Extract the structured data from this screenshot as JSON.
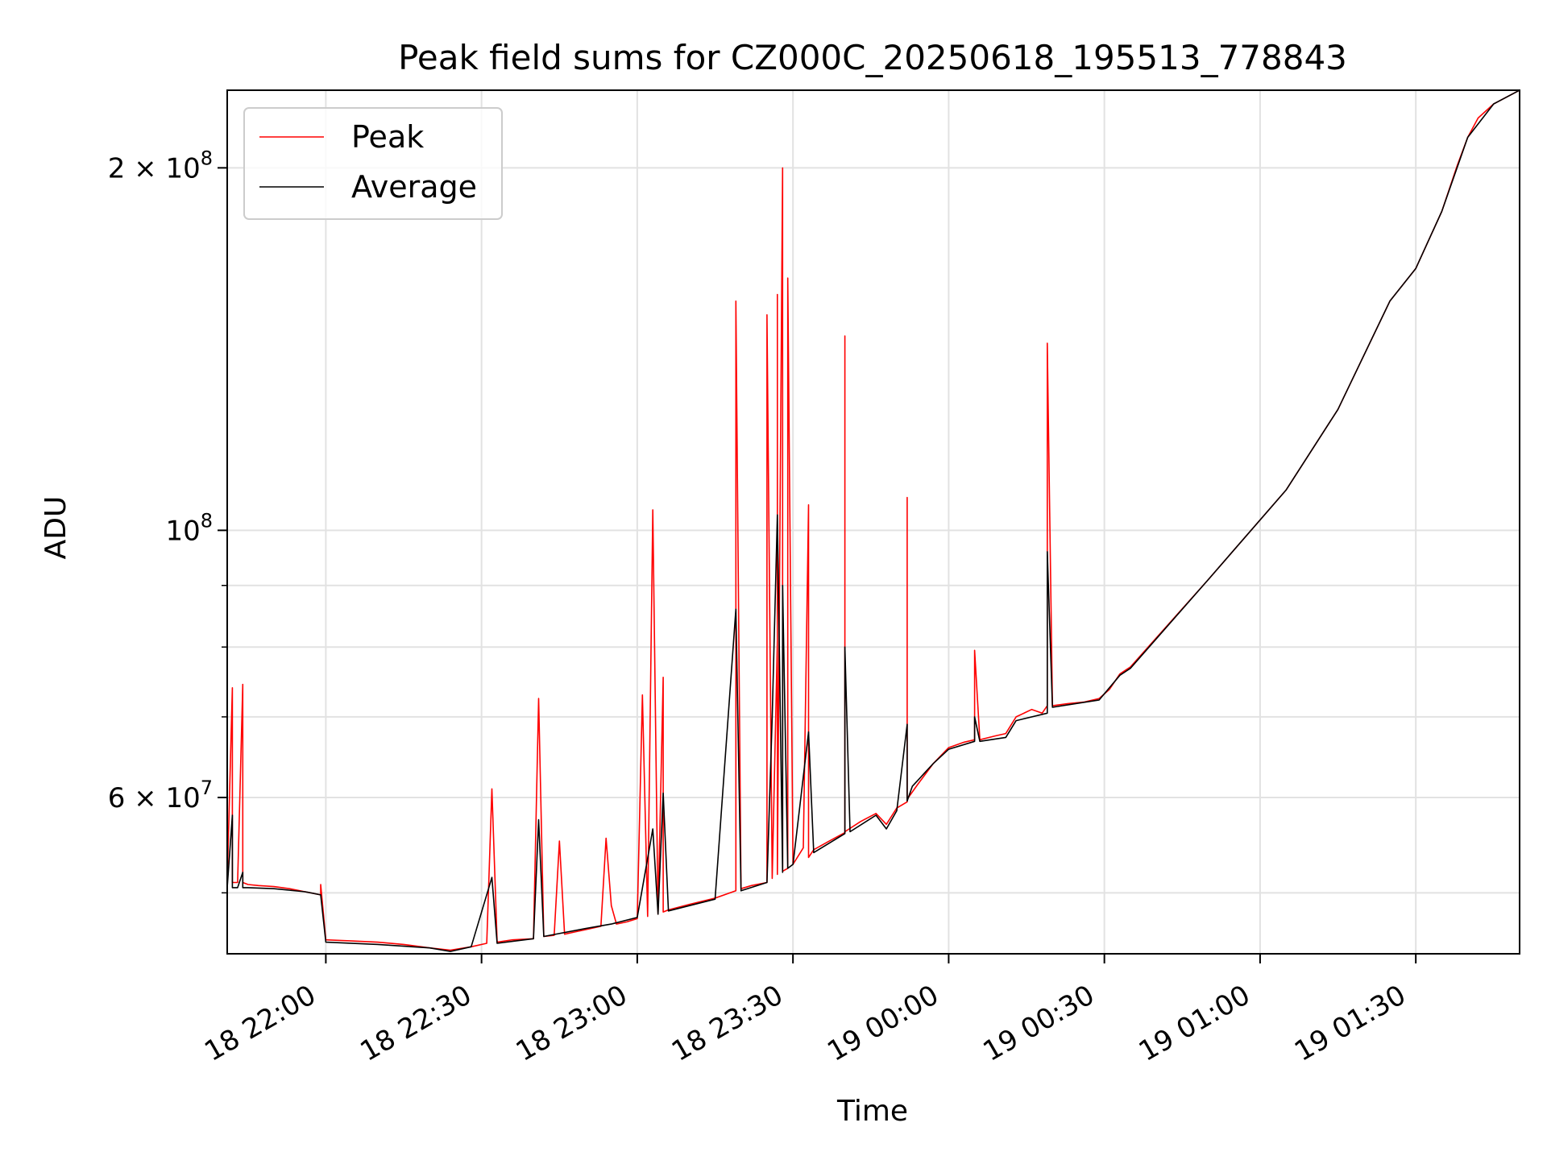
{
  "chart_data": {
    "type": "line",
    "title": "Peak field sums for CZ000C_20250618_195513_778843",
    "xlabel": "Time",
    "ylabel": "ADU",
    "y_scale": "log",
    "ylim": [
      44500000,
      232000000
    ],
    "xlim": [
      "2025-06-18 21:41",
      "2025-06-19 01:50"
    ],
    "grid": true,
    "legend_position": "top-left",
    "x_tick_labels": [
      "18 22:00",
      "18 22:30",
      "18 23:00",
      "18 23:30",
      "19 00:00",
      "19 00:30",
      "19 01:00",
      "19 01:30"
    ],
    "x_tick_times": [
      "2025-06-18 22:00",
      "2025-06-18 22:30",
      "2025-06-18 23:00",
      "2025-06-18 23:30",
      "2025-06-19 00:00",
      "2025-06-19 00:30",
      "2025-06-19 01:00",
      "2025-06-19 01:30"
    ],
    "y_major_ticks": [
      {
        "value": 60000000,
        "base": "6 × 10",
        "exp": "7"
      },
      {
        "value": 100000000,
        "base": "10",
        "exp": "8"
      },
      {
        "value": 200000000,
        "base": "2 × 10",
        "exp": "8"
      }
    ],
    "y_minor_ticks": [
      50000000,
      70000000,
      80000000,
      90000000
    ],
    "colors": {
      "Peak": "#ff0000",
      "Average": "#000000"
    },
    "series": [
      {
        "name": "Peak",
        "color": "#ff0000",
        "x": [
          "2025-06-18 21:41",
          "2025-06-18 21:42",
          "2025-06-18 21:42",
          "2025-06-18 21:43",
          "2025-06-18 21:44",
          "2025-06-18 21:44",
          "2025-06-18 21:45",
          "2025-06-18 21:47",
          "2025-06-18 21:50",
          "2025-06-18 21:53",
          "2025-06-18 21:56",
          "2025-06-18 21:59",
          "2025-06-18 21:59",
          "2025-06-18 22:00",
          "2025-06-18 22:05",
          "2025-06-18 22:10",
          "2025-06-18 22:15",
          "2025-06-18 22:20",
          "2025-06-18 22:24",
          "2025-06-18 22:28",
          "2025-06-18 22:31",
          "2025-06-18 22:32",
          "2025-06-18 22:33",
          "2025-06-18 22:36",
          "2025-06-18 22:40",
          "2025-06-18 22:41",
          "2025-06-18 22:42",
          "2025-06-18 22:44",
          "2025-06-18 22:45",
          "2025-06-18 22:46",
          "2025-06-18 22:48",
          "2025-06-18 22:50",
          "2025-06-18 22:53",
          "2025-06-18 22:54",
          "2025-06-18 22:55",
          "2025-06-18 22:56",
          "2025-06-18 22:58",
          "2025-06-18 23:00",
          "2025-06-18 23:01",
          "2025-06-18 23:02",
          "2025-06-18 23:03",
          "2025-06-18 23:04",
          "2025-06-18 23:05",
          "2025-06-18 23:05",
          "2025-06-18 23:06",
          "2025-06-18 23:10",
          "2025-06-18 23:15",
          "2025-06-18 23:19",
          "2025-06-18 23:19",
          "2025-06-18 23:20",
          "2025-06-18 23:22",
          "2025-06-18 23:25",
          "2025-06-18 23:25",
          "2025-06-18 23:26",
          "2025-06-18 23:27",
          "2025-06-18 23:27",
          "2025-06-18 23:27",
          "2025-06-18 23:28",
          "2025-06-18 23:28",
          "2025-06-18 23:29",
          "2025-06-18 23:29",
          "2025-06-18 23:30",
          "2025-06-18 23:32",
          "2025-06-18 23:33",
          "2025-06-18 23:33",
          "2025-06-18 23:34",
          "2025-06-18 23:37",
          "2025-06-18 23:40",
          "2025-06-18 23:40",
          "2025-06-18 23:40",
          "2025-06-18 23:43",
          "2025-06-18 23:46",
          "2025-06-18 23:48",
          "2025-06-18 23:50",
          "2025-06-18 23:52",
          "2025-06-18 23:52",
          "2025-06-18 23:52",
          "2025-06-18 23:54",
          "2025-06-18 23:57",
          "2025-06-19 00:00",
          "2025-06-19 00:03",
          "2025-06-19 00:05",
          "2025-06-19 00:05",
          "2025-06-19 00:06",
          "2025-06-19 00:09",
          "2025-06-19 00:11",
          "2025-06-19 00:13",
          "2025-06-19 00:16",
          "2025-06-19 00:18",
          "2025-06-19 00:19",
          "2025-06-19 00:19",
          "2025-06-19 00:20",
          "2025-06-19 00:23",
          "2025-06-19 00:26",
          "2025-06-19 00:29",
          "2025-06-19 00:31",
          "2025-06-19 00:33",
          "2025-06-19 00:35",
          "2025-06-19 00:50",
          "2025-06-19 01:05",
          "2025-06-19 01:15",
          "2025-06-19 01:25",
          "2025-06-19 01:30",
          "2025-06-19 01:35",
          "2025-06-19 01:38",
          "2025-06-19 01:40",
          "2025-06-19 01:42",
          "2025-06-19 01:45",
          "2025-06-19 01:50"
        ],
        "values": [
          51000000,
          74000000,
          51000000,
          51000000,
          74500000,
          51000000,
          50800000,
          50700000,
          50600000,
          50400000,
          50100000,
          49800000,
          50800000,
          45700000,
          45600000,
          45500000,
          45300000,
          45000000,
          44800000,
          45100000,
          45400000,
          61000000,
          45500000,
          45700000,
          45800000,
          72500000,
          46000000,
          46100000,
          55200000,
          46200000,
          46400000,
          46600000,
          46900000,
          55500000,
          48800000,
          47100000,
          47300000,
          47600000,
          73000000,
          47800000,
          104000000,
          48000000,
          75500000,
          48200000,
          48400000,
          48900000,
          49500000,
          50200000,
          155000000,
          50400000,
          50700000,
          51000000,
          151000000,
          51400000,
          81000000,
          157000000,
          51800000,
          200000000,
          52100000,
          52400000,
          162000000,
          52800000,
          54500000,
          105000000,
          53500000,
          54300000,
          55200000,
          56100000,
          145000000,
          56200000,
          57300000,
          58200000,
          57000000,
          58800000,
          59500000,
          106500000,
          59800000,
          61500000,
          64000000,
          66000000,
          66700000,
          67000000,
          79500000,
          67000000,
          67500000,
          67800000,
          70000000,
          71000000,
          70500000,
          71500000,
          143000000,
          71500000,
          71800000,
          72000000,
          72500000,
          73800000,
          76000000,
          77000000,
          91000000,
          108000000,
          126000000,
          155000000,
          165000000,
          184000000,
          201000000,
          212000000,
          220000000,
          226000000,
          232000000
        ]
      },
      {
        "name": "Average",
        "color": "#000000",
        "x": [
          "2025-06-18 21:41",
          "2025-06-18 21:42",
          "2025-06-18 21:42",
          "2025-06-18 21:43",
          "2025-06-18 21:44",
          "2025-06-18 21:44",
          "2025-06-18 21:45",
          "2025-06-18 21:50",
          "2025-06-18 21:56",
          "2025-06-18 21:59",
          "2025-06-18 22:00",
          "2025-06-18 22:10",
          "2025-06-18 22:20",
          "2025-06-18 22:24",
          "2025-06-18 22:28",
          "2025-06-18 22:32",
          "2025-06-18 22:33",
          "2025-06-18 22:40",
          "2025-06-18 22:41",
          "2025-06-18 22:42",
          "2025-06-18 22:50",
          "2025-06-18 22:55",
          "2025-06-18 23:00",
          "2025-06-18 23:03",
          "2025-06-18 23:04",
          "2025-06-18 23:05",
          "2025-06-18 23:06",
          "2025-06-18 23:15",
          "2025-06-18 23:19",
          "2025-06-18 23:20",
          "2025-06-18 23:25",
          "2025-06-18 23:26",
          "2025-06-18 23:27",
          "2025-06-18 23:28",
          "2025-06-18 23:28",
          "2025-06-18 23:29",
          "2025-06-18 23:30",
          "2025-06-18 23:33",
          "2025-06-18 23:34",
          "2025-06-18 23:40",
          "2025-06-18 23:40",
          "2025-06-18 23:41",
          "2025-06-18 23:46",
          "2025-06-18 23:48",
          "2025-06-18 23:50",
          "2025-06-18 23:52",
          "2025-06-18 23:52",
          "2025-06-18 23:53",
          "2025-06-18 23:57",
          "2025-06-19 00:00",
          "2025-06-19 00:05",
          "2025-06-19 00:05",
          "2025-06-19 00:06",
          "2025-06-19 00:11",
          "2025-06-19 00:13",
          "2025-06-19 00:19",
          "2025-06-19 00:19",
          "2025-06-19 00:20",
          "2025-06-19 00:29",
          "2025-06-19 00:33",
          "2025-06-19 00:35",
          "2025-06-19 00:50",
          "2025-06-19 01:05",
          "2025-06-19 01:15",
          "2025-06-19 01:25",
          "2025-06-19 01:30",
          "2025-06-19 01:35",
          "2025-06-19 01:40",
          "2025-06-19 01:45",
          "2025-06-19 01:50"
        ],
        "values": [
          50500000,
          58000000,
          50500000,
          50500000,
          52000000,
          50500000,
          50500000,
          50400000,
          50100000,
          49800000,
          45500000,
          45300000,
          45000000,
          44700000,
          45100000,
          51500000,
          45400000,
          45800000,
          57500000,
          46000000,
          46700000,
          47100000,
          47700000,
          56500000,
          48000000,
          60500000,
          48300000,
          49400000,
          86000000,
          50200000,
          51000000,
          70000000,
          103000000,
          52000000,
          90000000,
          52400000,
          52800000,
          68000000,
          54000000,
          56000000,
          80000000,
          56200000,
          58000000,
          56500000,
          58500000,
          69000000,
          59600000,
          61300000,
          64000000,
          65800000,
          66800000,
          70000000,
          66800000,
          67300000,
          69500000,
          70500000,
          96000000,
          71300000,
          72300000,
          75800000,
          76800000,
          91000000,
          108000000,
          126000000,
          155000000,
          165000000,
          184000000,
          212000000,
          226000000,
          232000000
        ]
      }
    ]
  }
}
